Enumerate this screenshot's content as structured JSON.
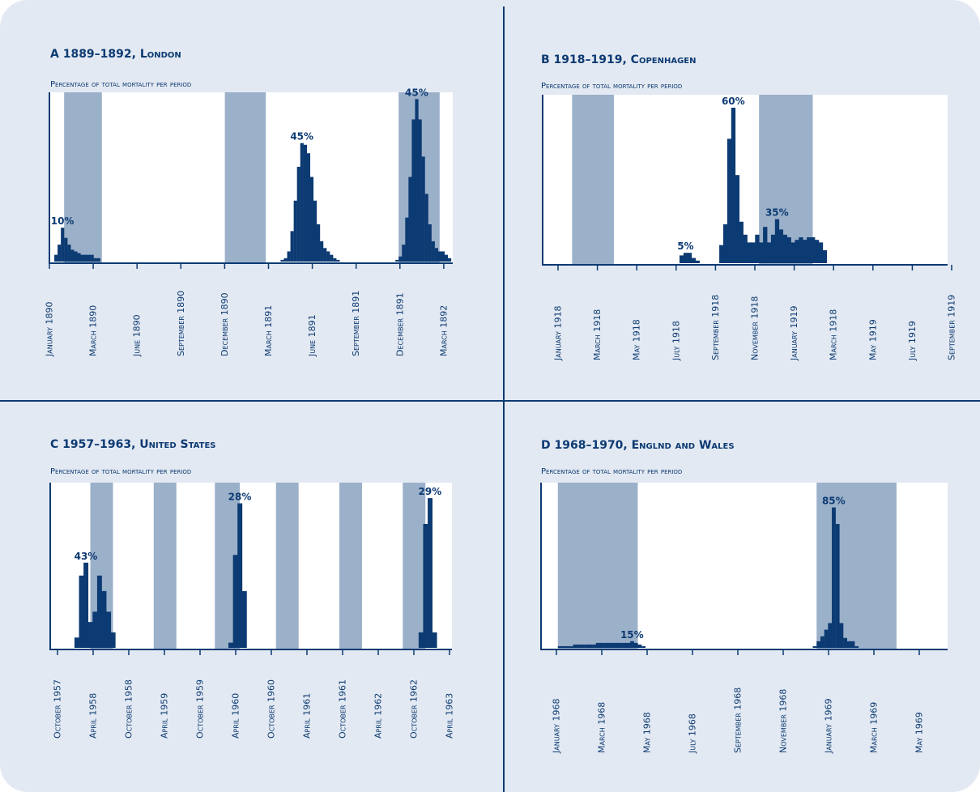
{
  "colors": {
    "panel_background": "#e3e9f2",
    "plot_background": "#ffffff",
    "bars": "#0c3a72",
    "shaded_period": "#9bb0c9",
    "axis": "#0c3a72"
  },
  "chart_data": [
    {
      "type": "bar",
      "panel": "A",
      "title": "A 1889–1892, London",
      "ylabel": "Percentage of total mortality per period",
      "x_ticks": [
        "January 1890",
        "March 1890",
        "June 1890",
        "September 1890",
        "December 1890",
        "March 1891",
        "June 1891",
        "September 1891",
        "December 1891",
        "March 1892"
      ],
      "x_index_range": [
        0,
        121
      ],
      "y_range": [
        0,
        50
      ],
      "shaded_periods": [
        [
          4,
          15.5
        ],
        [
          53,
          65.5
        ],
        [
          106,
          118.5
        ]
      ],
      "bars": [
        {
          "x": 0,
          "y": 0
        },
        {
          "x": 1,
          "y": 2
        },
        {
          "x": 2,
          "y": 5
        },
        {
          "x": 3,
          "y": 10
        },
        {
          "x": 4,
          "y": 7
        },
        {
          "x": 5,
          "y": 5
        },
        {
          "x": 6,
          "y": 3.5
        },
        {
          "x": 7,
          "y": 3
        },
        {
          "x": 8,
          "y": 2.5
        },
        {
          "x": 9,
          "y": 2
        },
        {
          "x": 10,
          "y": 2
        },
        {
          "x": 11,
          "y": 2
        },
        {
          "x": 12,
          "y": 2
        },
        {
          "x": 13,
          "y": 1
        },
        {
          "x": 14,
          "y": 1
        },
        {
          "x": 70,
          "y": 0.5
        },
        {
          "x": 71,
          "y": 1
        },
        {
          "x": 72,
          "y": 3
        },
        {
          "x": 73,
          "y": 9
        },
        {
          "x": 74,
          "y": 18
        },
        {
          "x": 75,
          "y": 28
        },
        {
          "x": 76,
          "y": 35
        },
        {
          "x": 77,
          "y": 34.5
        },
        {
          "x": 78,
          "y": 32
        },
        {
          "x": 79,
          "y": 25
        },
        {
          "x": 80,
          "y": 18
        },
        {
          "x": 81,
          "y": 11
        },
        {
          "x": 82,
          "y": 6
        },
        {
          "x": 83,
          "y": 4
        },
        {
          "x": 84,
          "y": 3
        },
        {
          "x": 85,
          "y": 2
        },
        {
          "x": 86,
          "y": 1
        },
        {
          "x": 87,
          "y": 0.5
        },
        {
          "x": 105,
          "y": 0.5
        },
        {
          "x": 106,
          "y": 1.5
        },
        {
          "x": 107,
          "y": 5
        },
        {
          "x": 108,
          "y": 13
        },
        {
          "x": 109,
          "y": 25
        },
        {
          "x": 110,
          "y": 42
        },
        {
          "x": 111,
          "y": 48
        },
        {
          "x": 112,
          "y": 42
        },
        {
          "x": 113,
          "y": 31
        },
        {
          "x": 114,
          "y": 20
        },
        {
          "x": 115,
          "y": 11
        },
        {
          "x": 116,
          "y": 6
        },
        {
          "x": 117,
          "y": 4
        },
        {
          "x": 118,
          "y": 3
        },
        {
          "x": 119,
          "y": 3
        },
        {
          "x": 120,
          "y": 2
        },
        {
          "x": 121,
          "y": 1
        }
      ],
      "annotations": [
        {
          "text": "10%",
          "x": 3,
          "y": 10
        },
        {
          "text": "45%",
          "x": 76,
          "y": 35
        },
        {
          "text": "45%",
          "x": 111,
          "y": 48
        }
      ]
    },
    {
      "type": "bar",
      "panel": "B",
      "title": "B 1918–1919, Copenhagen",
      "ylabel": "Percentage of total mortality per period",
      "x_ticks": [
        "January 1918",
        "March 1918",
        "May 1918",
        "July 1918",
        "September 1918",
        "November 1918",
        "January 1919",
        "March 1918",
        "May 1919",
        "July 1919",
        "September 1919"
      ],
      "x_index_range": [
        0,
        100
      ],
      "y_range": [
        0,
        65
      ],
      "shaded_periods": [
        [
          7,
          17.5
        ],
        [
          54,
          67.5
        ]
      ],
      "bars": [
        {
          "x": 34,
          "y": 3
        },
        {
          "x": 35,
          "y": 4
        },
        {
          "x": 36,
          "y": 4
        },
        {
          "x": 37,
          "y": 2
        },
        {
          "x": 38,
          "y": 1
        },
        {
          "x": 44,
          "y": 7
        },
        {
          "x": 45,
          "y": 15
        },
        {
          "x": 46,
          "y": 48
        },
        {
          "x": 47,
          "y": 60
        },
        {
          "x": 48,
          "y": 34
        },
        {
          "x": 49,
          "y": 16
        },
        {
          "x": 50,
          "y": 11
        },
        {
          "x": 51,
          "y": 8
        },
        {
          "x": 52,
          "y": 8
        },
        {
          "x": 53,
          "y": 11
        },
        {
          "x": 54,
          "y": 8
        },
        {
          "x": 55,
          "y": 14
        },
        {
          "x": 56,
          "y": 8
        },
        {
          "x": 57,
          "y": 11
        },
        {
          "x": 58,
          "y": 17
        },
        {
          "x": 59,
          "y": 13
        },
        {
          "x": 60,
          "y": 11
        },
        {
          "x": 61,
          "y": 10
        },
        {
          "x": 62,
          "y": 8
        },
        {
          "x": 63,
          "y": 9
        },
        {
          "x": 64,
          "y": 10
        },
        {
          "x": 65,
          "y": 9
        },
        {
          "x": 66,
          "y": 10
        },
        {
          "x": 67,
          "y": 10
        },
        {
          "x": 68,
          "y": 9
        },
        {
          "x": 69,
          "y": 8
        },
        {
          "x": 70,
          "y": 5
        }
      ],
      "annotations": [
        {
          "text": "5%",
          "x": 35,
          "y": 4
        },
        {
          "text": "60%",
          "x": 47,
          "y": 60
        },
        {
          "text": "35%",
          "x": 58,
          "y": 17
        }
      ]
    },
    {
      "type": "bar",
      "panel": "C",
      "title": "C 1957–1963, United States",
      "ylabel": "Percentage of total mortality per period",
      "x_ticks": [
        "October 1957",
        "April 1958",
        "October 1958",
        "April 1959",
        "October 1959",
        "April 1960",
        "October 1960",
        "April 1961",
        "October 1961",
        "April 1962",
        "October 1962",
        "April 1963"
      ],
      "x_index_range": [
        0,
        87
      ],
      "y_range": [
        0,
        32
      ],
      "shaded_periods": [
        [
          8.5,
          13.5
        ],
        [
          22.5,
          27.5
        ],
        [
          36,
          41.5
        ],
        [
          49.5,
          54.5
        ],
        [
          63.5,
          68.5
        ],
        [
          77.5,
          82.5
        ]
      ],
      "bars": [
        {
          "x": 5,
          "y": 2
        },
        {
          "x": 6,
          "y": 14
        },
        {
          "x": 7,
          "y": 16.5
        },
        {
          "x": 8,
          "y": 5
        },
        {
          "x": 9,
          "y": 7
        },
        {
          "x": 10,
          "y": 14
        },
        {
          "x": 11,
          "y": 11
        },
        {
          "x": 12,
          "y": 7
        },
        {
          "x": 13,
          "y": 3
        },
        {
          "x": 39,
          "y": 1
        },
        {
          "x": 40,
          "y": 18
        },
        {
          "x": 41,
          "y": 28
        },
        {
          "x": 42,
          "y": 11
        },
        {
          "x": 81,
          "y": 3
        },
        {
          "x": 82,
          "y": 24
        },
        {
          "x": 83,
          "y": 29
        },
        {
          "x": 84,
          "y": 3
        }
      ],
      "annotations": [
        {
          "text": "43%",
          "x": 7,
          "y": 16.5
        },
        {
          "text": "28%",
          "x": 41,
          "y": 28
        },
        {
          "text": "29%",
          "x": 83,
          "y": 29
        }
      ]
    },
    {
      "type": "bar",
      "panel": "D",
      "title": "D 1968–1970, Englnd and Wales",
      "ylabel": "Percentage of total mortality per period",
      "x_ticks": [
        "January 1968",
        "March 1968",
        "May 1968",
        "July 1968",
        "September 1968",
        "November 1968",
        "January 1969",
        "March 1969",
        "May 1969"
      ],
      "x_index_range": [
        0,
        105
      ],
      "y_range": [
        0,
        100
      ],
      "shaded_periods": [
        [
          4,
          25
        ],
        [
          72,
          93
        ]
      ],
      "bars": [
        {
          "x": 4,
          "y": 1
        },
        {
          "x": 5,
          "y": 1
        },
        {
          "x": 6,
          "y": 1
        },
        {
          "x": 7,
          "y": 1
        },
        {
          "x": 8,
          "y": 2
        },
        {
          "x": 9,
          "y": 2
        },
        {
          "x": 10,
          "y": 2
        },
        {
          "x": 11,
          "y": 2
        },
        {
          "x": 12,
          "y": 2
        },
        {
          "x": 13,
          "y": 2
        },
        {
          "x": 14,
          "y": 3
        },
        {
          "x": 15,
          "y": 3
        },
        {
          "x": 16,
          "y": 3
        },
        {
          "x": 17,
          "y": 3
        },
        {
          "x": 18,
          "y": 3
        },
        {
          "x": 19,
          "y": 3
        },
        {
          "x": 20,
          "y": 3
        },
        {
          "x": 21,
          "y": 3
        },
        {
          "x": 22,
          "y": 3
        },
        {
          "x": 23,
          "y": 4
        },
        {
          "x": 24,
          "y": 3
        },
        {
          "x": 25,
          "y": 2
        },
        {
          "x": 26,
          "y": 1
        },
        {
          "x": 71,
          "y": 1
        },
        {
          "x": 72,
          "y": 4
        },
        {
          "x": 73,
          "y": 7
        },
        {
          "x": 74,
          "y": 11
        },
        {
          "x": 75,
          "y": 15
        },
        {
          "x": 76,
          "y": 85
        },
        {
          "x": 77,
          "y": 75
        },
        {
          "x": 78,
          "y": 15
        },
        {
          "x": 79,
          "y": 6
        },
        {
          "x": 80,
          "y": 4
        },
        {
          "x": 81,
          "y": 4
        },
        {
          "x": 82,
          "y": 1
        }
      ],
      "annotations": [
        {
          "text": "15%",
          "x": 23,
          "y": 4
        },
        {
          "text": "85%",
          "x": 76,
          "y": 85
        }
      ]
    }
  ]
}
